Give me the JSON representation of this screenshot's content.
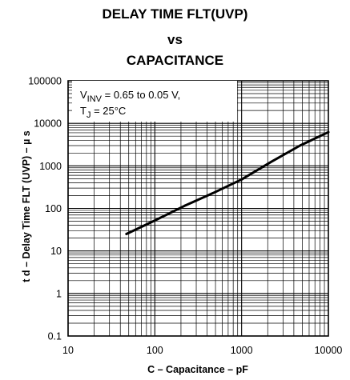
{
  "title_lines": [
    "DELAY TIME FLT(UVP)",
    "vs",
    "CAPACITANCE"
  ],
  "chart_data": {
    "type": "line",
    "title": "DELAY TIME FLT(UVP) vs CAPACITANCE",
    "xlabel": "C – Capacitance – pF",
    "ylabel": "t d – Delay Time FLT (UVP) – µ s",
    "xscale": "log",
    "yscale": "log",
    "xlim": [
      10,
      10000
    ],
    "ylim": [
      0.1,
      100000
    ],
    "x_ticks": [
      "10",
      "100",
      "1000",
      "10000"
    ],
    "y_ticks": [
      "0.1",
      "1",
      "10",
      "100",
      "1000",
      "10000",
      "100000"
    ],
    "grid": true,
    "series": [
      {
        "x": [
          47,
          100,
          220,
          470,
          1000,
          2200,
          4700,
          10000
        ],
        "y": [
          25,
          52,
          115,
          230,
          480,
          1250,
          3000,
          6200
        ]
      }
    ],
    "annotation": {
      "line1_pre": "V",
      "line1_sub": "INV",
      "line1_post": " = 0.65 to 0.05 V,",
      "line2_pre": "T",
      "line2_sub": "J",
      "line2_post": " = 25°C"
    }
  }
}
